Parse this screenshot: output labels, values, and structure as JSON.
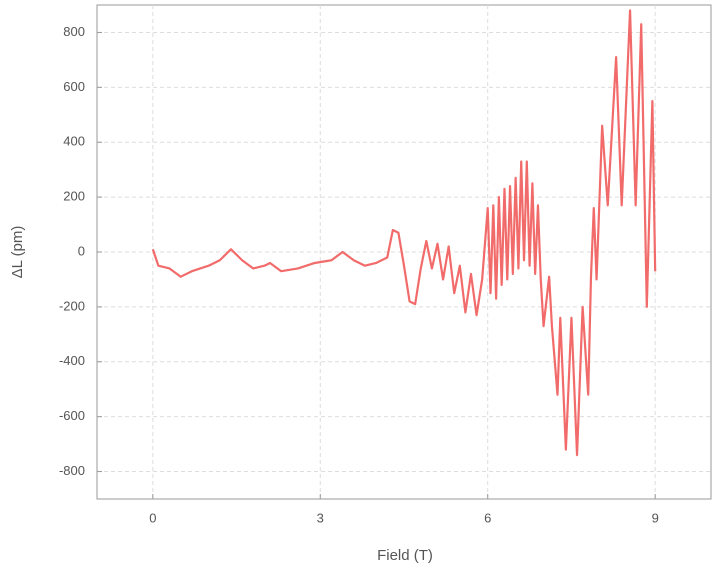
{
  "chart_data": {
    "type": "line",
    "x_label": "Field (T)",
    "y_label": "ΔL (pm)",
    "xlim": [
      -1,
      10
    ],
    "xticks": [
      0,
      3,
      6,
      9
    ],
    "ylim": [
      -900,
      900
    ],
    "yticks": [
      -800,
      -600,
      -400,
      -200,
      0,
      200,
      400,
      600,
      800
    ],
    "grid": true,
    "x": [
      0,
      0.1,
      0.3,
      0.5,
      0.7,
      1.0,
      1.2,
      1.4,
      1.6,
      1.8,
      2.0,
      2.1,
      2.3,
      2.6,
      2.9,
      3.2,
      3.4,
      3.6,
      3.8,
      4.0,
      4.2,
      4.3,
      4.4,
      4.5,
      4.6,
      4.7,
      4.8,
      4.9,
      5.0,
      5.1,
      5.2,
      5.3,
      5.4,
      5.5,
      5.6,
      5.7,
      5.8,
      5.9,
      6.0,
      6.05,
      6.1,
      6.15,
      6.2,
      6.25,
      6.3,
      6.35,
      6.4,
      6.45,
      6.5,
      6.55,
      6.6,
      6.65,
      6.7,
      6.75,
      6.8,
      6.85,
      6.9,
      6.95,
      7.0,
      7.1,
      7.15,
      7.25,
      7.3,
      7.4,
      7.5,
      7.6,
      7.7,
      7.8,
      7.85,
      7.9,
      7.95,
      8.05,
      8.15,
      8.3,
      8.4,
      8.55,
      8.65,
      8.75,
      8.85,
      8.95,
      9.0
    ],
    "series": [
      {
        "name": "ΔL",
        "color": "#f26b6b",
        "values": [
          10,
          -50,
          -60,
          -90,
          -70,
          -50,
          -30,
          10,
          -30,
          -60,
          -50,
          -40,
          -70,
          -60,
          -40,
          -30,
          0,
          -30,
          -50,
          -40,
          -20,
          80,
          70,
          -50,
          -180,
          -190,
          -60,
          40,
          -60,
          30,
          -100,
          20,
          -150,
          -50,
          -220,
          -80,
          -230,
          -100,
          160,
          -150,
          170,
          -170,
          200,
          -120,
          230,
          -100,
          240,
          -80,
          270,
          -60,
          330,
          -30,
          330,
          -50,
          250,
          -80,
          170,
          -100,
          -270,
          -90,
          -270,
          -520,
          -240,
          -720,
          -240,
          -740,
          -200,
          -520,
          -90,
          160,
          -100,
          460,
          170,
          710,
          170,
          880,
          170,
          830,
          -200,
          550,
          -70
        ]
      }
    ]
  }
}
